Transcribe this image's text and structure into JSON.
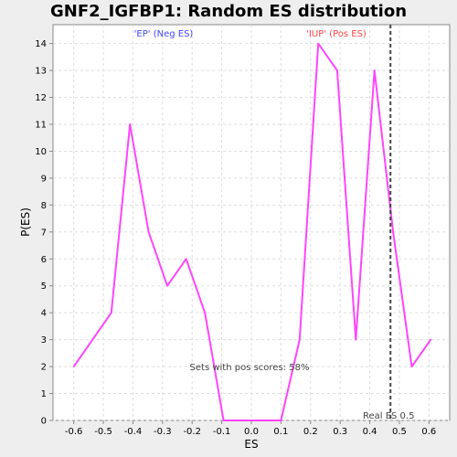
{
  "chart_data": {
    "type": "line",
    "title": "GNF2_IGFBP1: Random ES distribution",
    "xlabel": "ES",
    "ylabel": "P(ES)",
    "xlim": [
      -0.67,
      0.67
    ],
    "ylim": [
      0,
      14.7
    ],
    "x_ticks": [
      "-0.6",
      "-0.5",
      "-0.4",
      "-0.3",
      "-0.2",
      "-0.1",
      "0.0",
      "0.1",
      "0.2",
      "0.3",
      "0.4",
      "0.5",
      "0.6"
    ],
    "x_tick_values": [
      -0.6,
      -0.5,
      -0.4,
      -0.3,
      -0.2,
      -0.1,
      0.0,
      0.1,
      0.2,
      0.3,
      0.4,
      0.5,
      0.6
    ],
    "y_ticks": [
      "0",
      "1",
      "2",
      "3",
      "4",
      "5",
      "6",
      "7",
      "8",
      "9",
      "10",
      "11",
      "12",
      "13",
      "14"
    ],
    "y_tick_values": [
      0,
      1,
      2,
      3,
      4,
      5,
      6,
      7,
      8,
      9,
      10,
      11,
      12,
      13,
      14
    ],
    "grid": true,
    "series": [
      {
        "color": "#ff44ff",
        "x": [
          -0.6,
          -0.473,
          -0.41,
          -0.347,
          -0.284,
          -0.22,
          -0.157,
          -0.094,
          -0.031,
          0.032,
          0.1,
          0.163,
          0.226,
          0.29,
          0.353,
          0.416,
          0.479,
          0.542,
          0.606
        ],
        "y": [
          2,
          4,
          11,
          7,
          5,
          6,
          4,
          0,
          0,
          0,
          0,
          3,
          14,
          13,
          3,
          13,
          7,
          2,
          3
        ]
      }
    ],
    "real_es": {
      "x": 0.47,
      "label": "Real ES 0.5",
      "color": "#444444"
    },
    "annotations": {
      "neg_label": "'EP' (Neg ES)",
      "neg_color": "#4444ff",
      "pos_label": "'IUP' (Pos ES)",
      "pos_color": "#ff4444",
      "pos_scores": "Sets with pos scores: 58%"
    },
    "colors": {
      "plot_bg": "#ffffff",
      "page_bg": "#eeeeee",
      "grid": "#dddddd"
    }
  }
}
